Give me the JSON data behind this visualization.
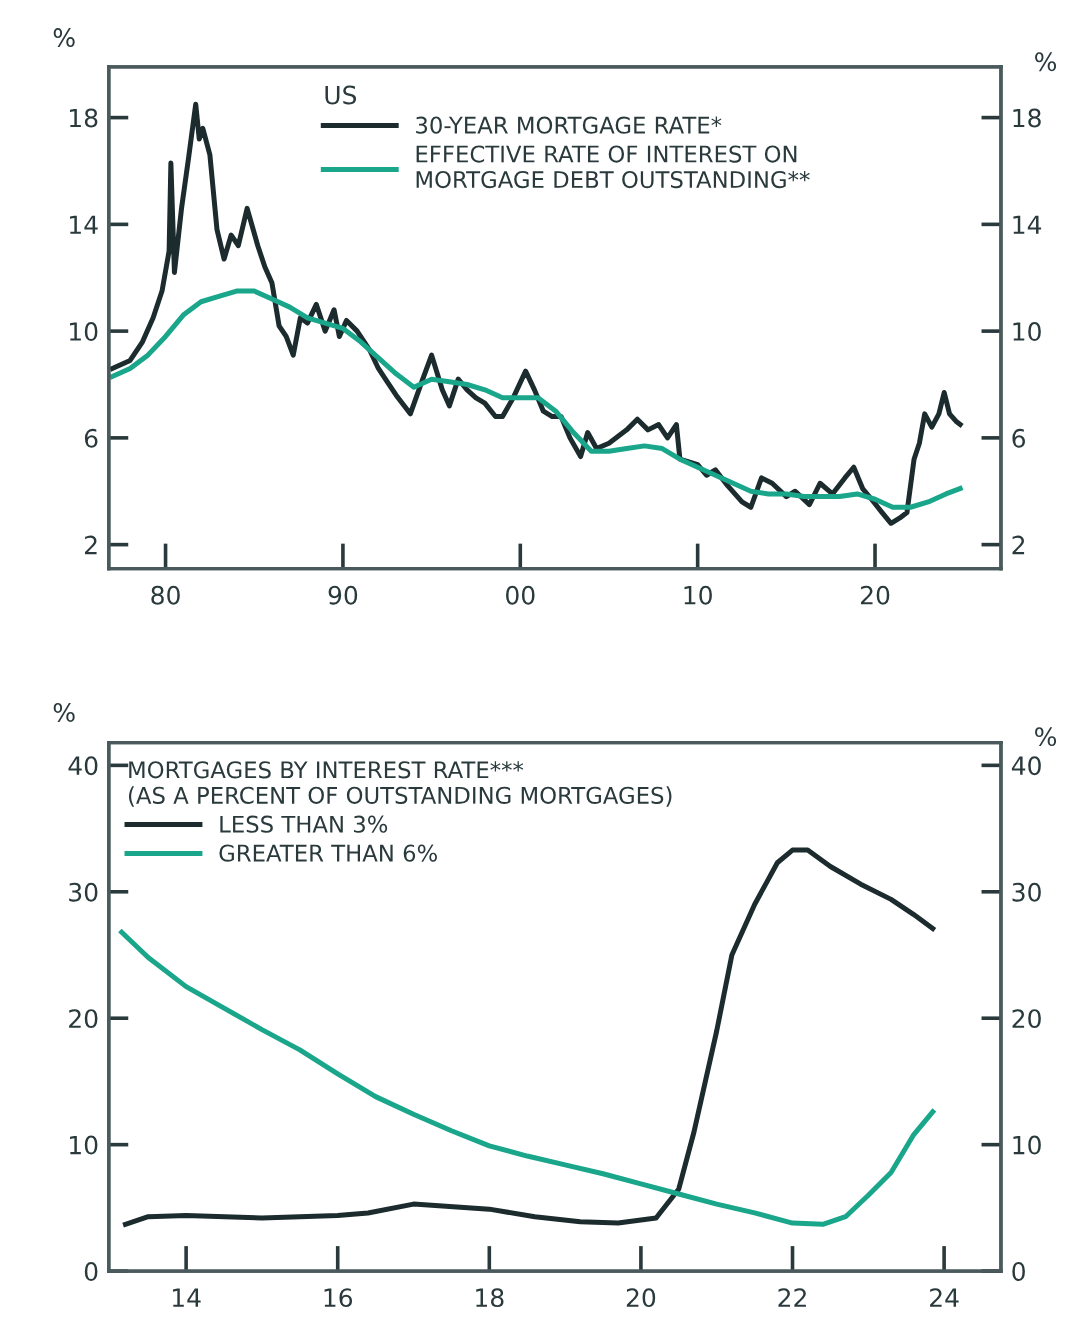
{
  "chart_data": [
    {
      "type": "line",
      "legend_title": "US",
      "ylabel": "%",
      "y2label": "%",
      "legend": "top",
      "grid": false,
      "line_style": "solid",
      "marker": "none",
      "xlim": [
        1976.8,
        2027.1
      ],
      "xticks": [
        {
          "value": 1980,
          "label": "80"
        },
        {
          "value": 1990,
          "label": "90"
        },
        {
          "value": 2000,
          "label": "00"
        },
        {
          "value": 2010,
          "label": "10"
        },
        {
          "value": 2020,
          "label": "20"
        }
      ],
      "ylim": [
        1.1,
        19.9
      ],
      "yticks": [
        2,
        6,
        10,
        14,
        18
      ],
      "y2lim": [
        1.1,
        19.9
      ],
      "y2ticks": [
        2,
        6,
        10,
        14,
        18
      ],
      "series": [
        {
          "name": "30-YEAR MORTGAGE RATE*",
          "color": "#1c2b2e",
          "x": [
            1977,
            1978,
            1978.7,
            1979.3,
            1979.8,
            1980.2,
            1980.3,
            1980.5,
            1980.9,
            1981.3,
            1981.7,
            1981.9,
            1982.1,
            1982.5,
            1982.9,
            1983.3,
            1983.7,
            1984.1,
            1984.6,
            1985.2,
            1985.6,
            1986.0,
            1986.4,
            1986.8,
            1987.2,
            1987.6,
            1988.0,
            1988.5,
            1989.0,
            1989.5,
            1989.8,
            1990.2,
            1990.8,
            1991.5,
            1992.0,
            1992.5,
            1993.0,
            1993.8,
            1994.5,
            1995.0,
            1995.6,
            1996.0,
            1996.5,
            1997.0,
            1997.5,
            1998.0,
            1998.6,
            1999.0,
            1999.6,
            2000.3,
            2000.8,
            2001.3,
            2001.8,
            2002.3,
            2002.8,
            2003.4,
            2003.8,
            2004.3,
            2005.0,
            2006.0,
            2006.6,
            2007.2,
            2007.8,
            2008.3,
            2008.8,
            2009.0,
            2010.0,
            2010.5,
            2011.0,
            2011.7,
            2012.5,
            2013.0,
            2013.6,
            2014.2,
            2015.0,
            2015.5,
            2016.3,
            2016.9,
            2017.6,
            2018.3,
            2018.8,
            2019.3,
            2019.8,
            2020.4,
            2020.9,
            2021.4,
            2021.8,
            2022.2,
            2022.5,
            2022.8,
            2023.2,
            2023.6,
            2023.9,
            2024.2,
            2024.6,
            2024.8
          ],
          "values": [
            8.6,
            8.9,
            9.6,
            10.5,
            11.5,
            13.0,
            16.3,
            12.2,
            14.6,
            16.5,
            18.5,
            17.2,
            17.6,
            16.6,
            13.8,
            12.7,
            13.6,
            13.2,
            14.6,
            13.2,
            12.4,
            11.8,
            10.2,
            9.8,
            9.1,
            10.5,
            10.3,
            11.0,
            10.0,
            10.8,
            9.8,
            10.4,
            10.0,
            9.3,
            8.6,
            8.1,
            7.6,
            6.9,
            8.2,
            9.1,
            7.8,
            7.2,
            8.2,
            7.8,
            7.5,
            7.3,
            6.8,
            6.8,
            7.5,
            8.5,
            7.8,
            7.0,
            6.8,
            6.8,
            6.0,
            5.3,
            6.2,
            5.6,
            5.8,
            6.3,
            6.7,
            6.3,
            6.5,
            6.0,
            6.5,
            5.2,
            5.0,
            4.6,
            4.8,
            4.2,
            3.6,
            3.4,
            4.5,
            4.3,
            3.8,
            4.0,
            3.5,
            4.3,
            3.9,
            4.5,
            4.9,
            4.1,
            3.7,
            3.2,
            2.8,
            3.0,
            3.2,
            5.2,
            5.8,
            6.9,
            6.4,
            6.9,
            7.7,
            6.9,
            6.6,
            6.5
          ]
        },
        {
          "name": "EFFECTIVE RATE OF INTEREST ON\nMORTGAGE DEBT OUTSTANDING**",
          "color": "#1aa68a",
          "x": [
            1977,
            1978,
            1979,
            1980,
            1981,
            1982,
            1983,
            1984,
            1985,
            1986,
            1987,
            1988,
            1989,
            1990,
            1991,
            1992,
            1993,
            1994,
            1995,
            1996,
            1997,
            1998,
            1999,
            2000,
            2001,
            2002,
            2003,
            2004,
            2005,
            2006,
            2007,
            2008,
            2009,
            2010,
            2011,
            2012,
            2013,
            2014,
            2015,
            2016,
            2017,
            2018,
            2019,
            2020,
            2021,
            2022,
            2023,
            2024,
            2024.8
          ],
          "values": [
            8.3,
            8.6,
            9.1,
            9.8,
            10.6,
            11.1,
            11.3,
            11.5,
            11.5,
            11.2,
            10.9,
            10.5,
            10.3,
            10.1,
            9.6,
            9.0,
            8.4,
            7.9,
            8.2,
            8.1,
            8.0,
            7.8,
            7.5,
            7.5,
            7.5,
            7.0,
            6.2,
            5.5,
            5.5,
            5.6,
            5.7,
            5.6,
            5.2,
            4.9,
            4.6,
            4.3,
            4.0,
            3.9,
            3.9,
            3.8,
            3.8,
            3.8,
            3.9,
            3.7,
            3.4,
            3.4,
            3.6,
            3.9,
            4.1
          ]
        }
      ]
    },
    {
      "type": "line",
      "legend_title": "MORTGAGES BY INTEREST RATE***\n(AS A PERCENT OF OUTSTANDING MORTGAGES)",
      "ylabel": "%",
      "y2label": "%",
      "legend": "top left",
      "grid": false,
      "line_style": "solid",
      "marker": "none",
      "xlim": [
        2012.98,
        2024.75
      ],
      "xticks": [
        {
          "value": 2014,
          "label": "14"
        },
        {
          "value": 2016,
          "label": "16"
        },
        {
          "value": 2018,
          "label": "18"
        },
        {
          "value": 2020,
          "label": "20"
        },
        {
          "value": 2022,
          "label": "22"
        },
        {
          "value": 2024,
          "label": "24"
        }
      ],
      "ylim": [
        0,
        41.8
      ],
      "yticks": [
        0,
        10,
        20,
        30,
        40
      ],
      "y2lim": [
        0,
        41.8
      ],
      "y2ticks": [
        0,
        10,
        20,
        30,
        40
      ],
      "series": [
        {
          "name": "LESS THAN 3%",
          "color": "#1c2b2e",
          "x": [
            2013.2,
            2013.5,
            2014,
            2015,
            2016,
            2016.4,
            2017,
            2018,
            2018.6,
            2019.2,
            2019.7,
            2020.2,
            2020.5,
            2020.7,
            2021.0,
            2021.2,
            2021.5,
            2021.8,
            2022.0,
            2022.2,
            2022.5,
            2022.9,
            2023.3,
            2023.6,
            2023.85
          ],
          "values": [
            3.7,
            4.3,
            4.4,
            4.2,
            4.4,
            4.6,
            5.3,
            4.9,
            4.3,
            3.9,
            3.8,
            4.2,
            6.5,
            11.0,
            19.0,
            25.0,
            29.0,
            32.3,
            33.3,
            33.3,
            32.0,
            30.6,
            29.4,
            28.2,
            27.1
          ]
        },
        {
          "name": "GREATER THAN 6%",
          "color": "#1aa68a",
          "x": [
            2013.15,
            2013.5,
            2014.0,
            2014.5,
            2015.0,
            2015.5,
            2016.0,
            2016.5,
            2017.0,
            2017.5,
            2018.0,
            2018.5,
            2019.0,
            2019.5,
            2020.0,
            2020.5,
            2021.0,
            2021.5,
            2022.0,
            2022.4,
            2022.7,
            2023.0,
            2023.3,
            2023.6,
            2023.85
          ],
          "values": [
            26.8,
            24.8,
            22.5,
            20.8,
            19.1,
            17.5,
            15.6,
            13.8,
            12.4,
            11.1,
            9.9,
            9.1,
            8.4,
            7.7,
            6.9,
            6.1,
            5.3,
            4.6,
            3.8,
            3.7,
            4.3,
            6.0,
            7.8,
            10.8,
            12.6
          ]
        }
      ]
    }
  ]
}
